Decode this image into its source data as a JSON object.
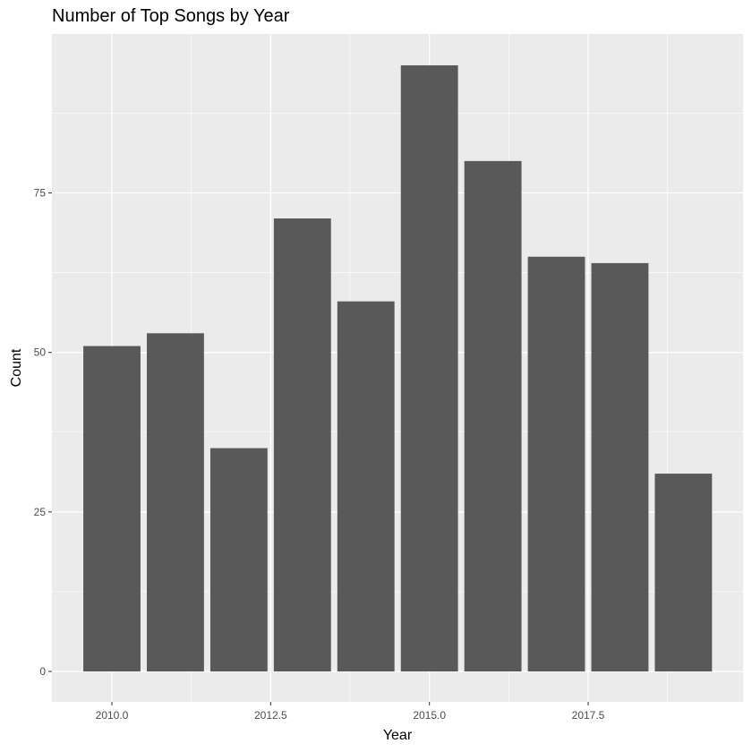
{
  "chart_data": {
    "type": "bar",
    "title": "Number of Top Songs by Year",
    "xlabel": "Year",
    "ylabel": "Count",
    "x": [
      2010,
      2011,
      2012,
      2013,
      2014,
      2015,
      2016,
      2017,
      2018,
      2019
    ],
    "values": [
      51,
      53,
      35,
      71,
      58,
      95,
      80,
      65,
      64,
      31
    ],
    "xlim": [
      2009.5,
      2019.5
    ],
    "ylim": [
      0,
      100
    ],
    "x_ticks": [
      2010.0,
      2012.5,
      2015.0,
      2017.5
    ],
    "x_tick_labels": [
      "2010.0",
      "2012.5",
      "2015.0",
      "2017.5"
    ],
    "y_ticks": [
      0,
      25,
      50,
      75
    ],
    "y_tick_labels": [
      "0",
      "25",
      "50",
      "75"
    ],
    "grid": true,
    "colors": {
      "bar": "#595959",
      "panel": "#ebebeb",
      "grid": "#ffffff"
    }
  }
}
